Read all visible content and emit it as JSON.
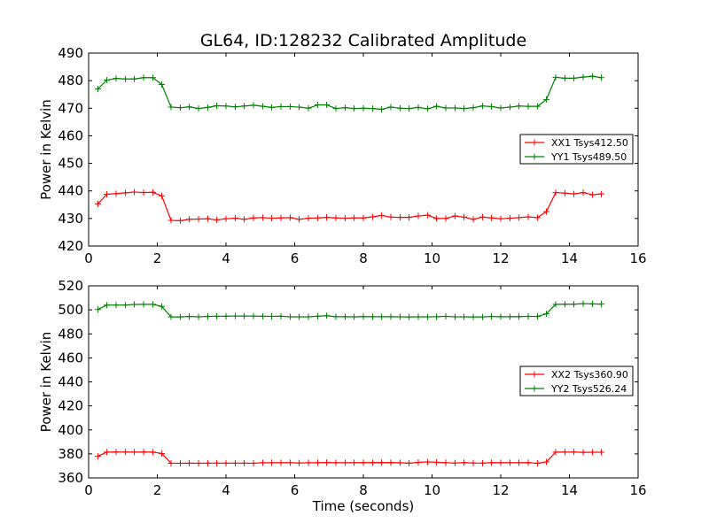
{
  "chart_data": [
    {
      "type": "line",
      "title": "GL64, ID:128232 Calibrated Amplitude",
      "xlabel": "",
      "ylabel": "Power in Kelvin",
      "xlim": [
        0,
        16
      ],
      "ylim": [
        420,
        490
      ],
      "xticks": [
        0,
        2,
        4,
        6,
        8,
        10,
        12,
        14,
        16
      ],
      "yticks": [
        420,
        430,
        440,
        450,
        460,
        470,
        480,
        490
      ],
      "legend_position": "center-right",
      "grid": false,
      "x": [
        0.27,
        0.53,
        0.8,
        1.07,
        1.33,
        1.6,
        1.87,
        2.13,
        2.4,
        2.67,
        2.93,
        3.2,
        3.47,
        3.73,
        4.0,
        4.27,
        4.53,
        4.8,
        5.07,
        5.33,
        5.6,
        5.87,
        6.13,
        6.4,
        6.67,
        6.93,
        7.2,
        7.47,
        7.73,
        8.0,
        8.27,
        8.53,
        8.8,
        9.07,
        9.33,
        9.6,
        9.87,
        10.13,
        10.4,
        10.67,
        10.93,
        11.2,
        11.47,
        11.73,
        12.0,
        12.27,
        12.53,
        12.8,
        13.07,
        13.33,
        13.6,
        13.87,
        14.13,
        14.4,
        14.67,
        14.93
      ],
      "series": [
        {
          "name": "XX1 Tsys412.50",
          "color": "#ff0000",
          "values": [
            435.3,
            438.8,
            439.0,
            439.3,
            439.6,
            439.4,
            439.5,
            438.2,
            429.3,
            429.2,
            429.7,
            429.8,
            429.9,
            429.5,
            429.9,
            430.1,
            429.7,
            430.2,
            430.3,
            430.1,
            430.2,
            430.3,
            429.7,
            430.1,
            430.2,
            430.4,
            430.2,
            430.1,
            430.2,
            430.2,
            430.6,
            431.1,
            430.5,
            430.4,
            430.4,
            430.9,
            431.2,
            430.0,
            430.0,
            430.9,
            430.5,
            429.7,
            430.5,
            430.2,
            429.9,
            430.1,
            430.3,
            430.6,
            430.3,
            432.5,
            439.4,
            439.2,
            438.9,
            439.4,
            438.6,
            438.9
          ]
        },
        {
          "name": "YY1 Tsys489.50",
          "color": "#008000",
          "values": [
            477.0,
            480.2,
            480.8,
            480.6,
            480.6,
            481.1,
            481.1,
            478.6,
            470.4,
            470.2,
            470.5,
            469.9,
            470.3,
            470.9,
            470.8,
            470.5,
            470.8,
            471.1,
            470.7,
            470.3,
            470.6,
            470.6,
            470.4,
            470.0,
            471.2,
            471.2,
            469.9,
            470.2,
            469.9,
            470.0,
            469.9,
            469.6,
            470.4,
            470.0,
            469.9,
            470.3,
            469.8,
            470.7,
            470.1,
            470.1,
            469.9,
            470.2,
            470.8,
            470.6,
            470.1,
            470.4,
            470.8,
            470.7,
            470.7,
            473.2,
            481.2,
            480.9,
            480.9,
            481.3,
            481.6,
            481.1
          ]
        }
      ]
    },
    {
      "type": "line",
      "title": "",
      "xlabel": "Time (seconds)",
      "ylabel": "Power in Kelvin",
      "xlim": [
        0,
        16
      ],
      "ylim": [
        360,
        520
      ],
      "xticks": [
        0,
        2,
        4,
        6,
        8,
        10,
        12,
        14,
        16
      ],
      "yticks": [
        360,
        380,
        400,
        420,
        440,
        460,
        480,
        500,
        520
      ],
      "legend_position": "center-right",
      "grid": false,
      "x": [
        0.27,
        0.53,
        0.8,
        1.07,
        1.33,
        1.6,
        1.87,
        2.13,
        2.4,
        2.67,
        2.93,
        3.2,
        3.47,
        3.73,
        4.0,
        4.27,
        4.53,
        4.8,
        5.07,
        5.33,
        5.6,
        5.87,
        6.13,
        6.4,
        6.67,
        6.93,
        7.2,
        7.47,
        7.73,
        8.0,
        8.27,
        8.53,
        8.8,
        9.07,
        9.33,
        9.6,
        9.87,
        10.13,
        10.4,
        10.67,
        10.93,
        11.2,
        11.47,
        11.73,
        12.0,
        12.27,
        12.53,
        12.8,
        13.07,
        13.33,
        13.6,
        13.87,
        14.13,
        14.4,
        14.67,
        14.93
      ],
      "series": [
        {
          "name": "XX2 Tsys360.90",
          "color": "#ff0000",
          "values": [
            378.0,
            381.5,
            381.6,
            381.6,
            381.5,
            381.6,
            381.5,
            380.3,
            372.2,
            372.2,
            372.3,
            372.2,
            372.3,
            372.3,
            372.3,
            372.3,
            372.3,
            372.2,
            372.6,
            372.6,
            372.6,
            372.6,
            372.4,
            372.6,
            372.6,
            372.8,
            372.6,
            372.6,
            372.6,
            372.7,
            372.7,
            372.8,
            372.7,
            372.6,
            372.3,
            372.9,
            373.3,
            373.0,
            372.6,
            372.4,
            372.7,
            372.4,
            372.3,
            372.7,
            372.6,
            372.6,
            372.6,
            372.7,
            372.2,
            373.3,
            381.5,
            381.5,
            381.6,
            381.3,
            381.4,
            381.4
          ]
        },
        {
          "name": "YY2 Tsys526.24",
          "color": "#008000",
          "values": [
            500.3,
            504.0,
            504.0,
            504.0,
            504.5,
            504.6,
            504.6,
            502.9,
            494.1,
            494.1,
            494.5,
            494.2,
            494.5,
            494.7,
            494.7,
            494.9,
            494.8,
            494.8,
            494.7,
            494.6,
            494.7,
            494.2,
            494.2,
            494.2,
            494.7,
            495.1,
            494.3,
            494.3,
            494.2,
            494.4,
            494.3,
            494.3,
            494.3,
            494.2,
            494.1,
            494.2,
            494.2,
            494.3,
            494.6,
            494.2,
            494.2,
            494.1,
            494.1,
            494.5,
            494.3,
            494.3,
            494.4,
            494.6,
            494.5,
            496.7,
            504.6,
            504.7,
            504.7,
            505.2,
            505.0,
            504.8
          ]
        }
      ]
    }
  ]
}
